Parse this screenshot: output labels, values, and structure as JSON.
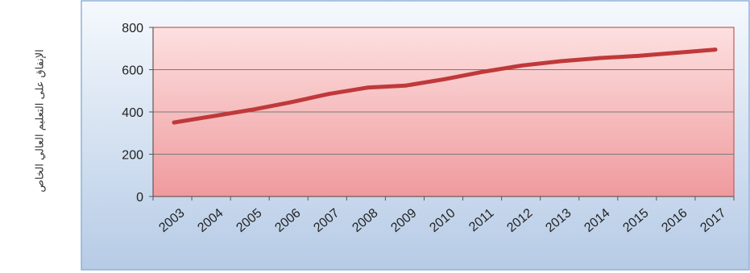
{
  "chart_data": {
    "type": "line",
    "title": "",
    "xlabel": "",
    "ylabel": "الإنفاق على التعليم العالي الخاص",
    "x": [
      "2003",
      "2004",
      "2005",
      "2006",
      "2007",
      "2008",
      "2009",
      "2010",
      "2011",
      "2012",
      "2013",
      "2014",
      "2015",
      "2016",
      "2017"
    ],
    "series": [
      {
        "values": [
          350,
          380,
          410,
          445,
          485,
          515,
          525,
          555,
          590,
          620,
          640,
          655,
          665,
          680,
          695
        ]
      }
    ],
    "ylim": [
      0,
      800
    ],
    "yticks": [
      0,
      200,
      400,
      600,
      800
    ],
    "grid": true,
    "colors": {
      "line": "#c0393a",
      "plot_top": "#fde0e0",
      "plot_bottom": "#ef9a9d",
      "frame_top": "#f5f9fd",
      "frame_bottom": "#b6cbe6",
      "frame_border": "#8fb2d9",
      "plot_border": "#c55a5a",
      "grid": "#7a7a7a"
    }
  }
}
